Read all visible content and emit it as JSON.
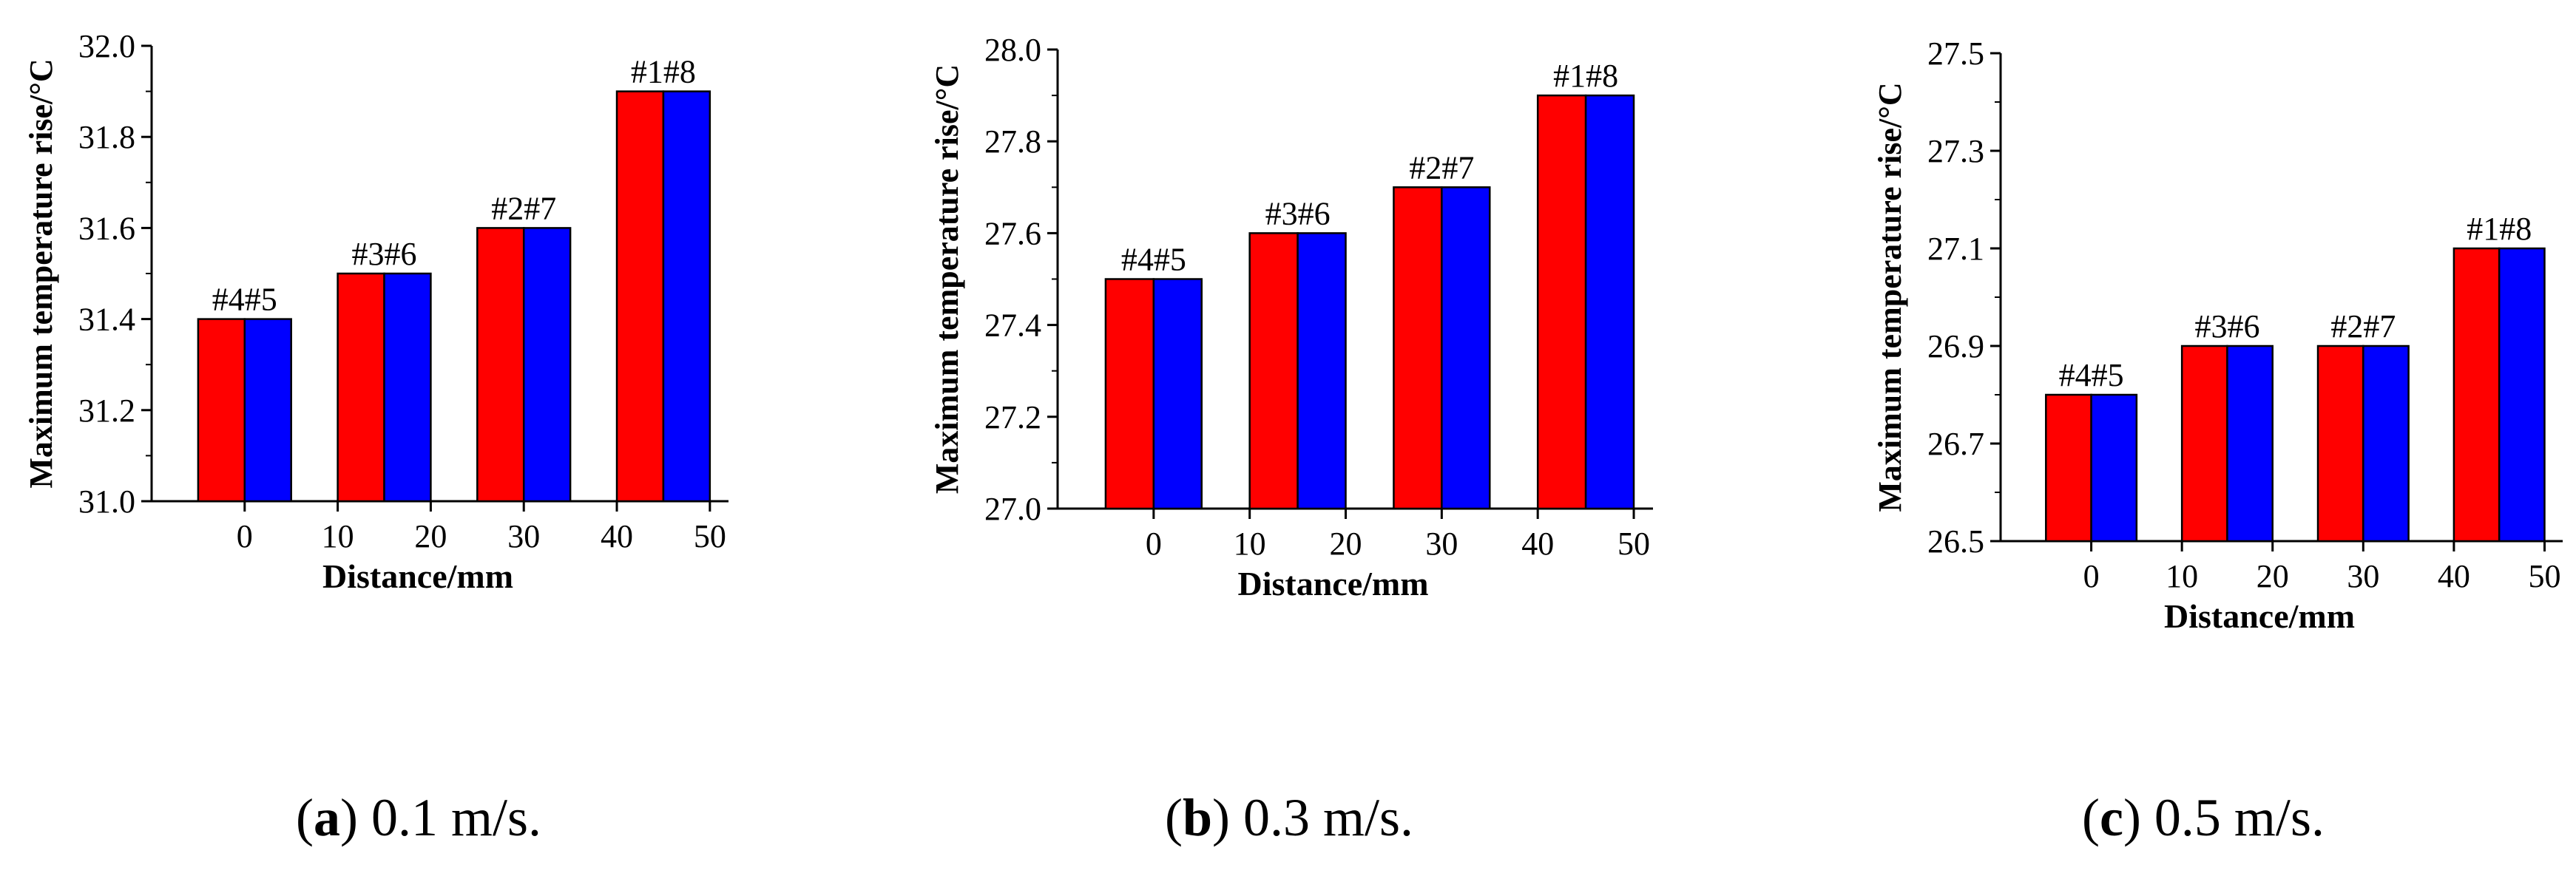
{
  "chart_data": [
    {
      "type": "bar",
      "categories": [
        "0",
        "15",
        "30",
        "45"
      ],
      "x_ticks": [
        "0",
        "10",
        "20",
        "30",
        "40",
        "50"
      ],
      "x_range": [
        -10,
        52
      ],
      "series": [
        {
          "name": "red",
          "color": "#ff0000",
          "values": [
            31.4,
            31.5,
            31.6,
            31.9
          ]
        },
        {
          "name": "blue",
          "color": "#0000ff",
          "values": [
            31.4,
            31.5,
            31.6,
            31.9
          ]
        }
      ],
      "bar_labels": [
        "#4#5",
        "#3#6",
        "#2#7",
        "#1#8"
      ],
      "xlabel": "Distance/mm",
      "ylabel": "Maximum temperature rise/°C",
      "ylim": [
        31.0,
        32.0
      ],
      "y_ticks": [
        "31.0",
        "31.2",
        "31.4",
        "31.6",
        "31.8",
        "32.0"
      ],
      "caption_letter": "a",
      "caption_open": "(",
      "caption_rest": ") 0.1 m/s."
    },
    {
      "type": "bar",
      "categories": [
        "0",
        "15",
        "30",
        "45"
      ],
      "x_ticks": [
        "0",
        "10",
        "20",
        "30",
        "40",
        "50"
      ],
      "x_range": [
        -10,
        52
      ],
      "series": [
        {
          "name": "red",
          "color": "#ff0000",
          "values": [
            27.5,
            27.6,
            27.7,
            27.9
          ]
        },
        {
          "name": "blue",
          "color": "#0000ff",
          "values": [
            27.5,
            27.6,
            27.7,
            27.9
          ]
        }
      ],
      "bar_labels": [
        "#4#5",
        "#3#6",
        "#2#7",
        "#1#8"
      ],
      "xlabel": "Distance/mm",
      "ylabel": "Maximum temperature rise/°C",
      "ylim": [
        27.0,
        28.0
      ],
      "y_ticks": [
        "27.0",
        "27.2",
        "27.4",
        "27.6",
        "27.8",
        "28.0"
      ],
      "caption_letter": "b",
      "caption_open": "(",
      "caption_rest": ") 0.3 m/s."
    },
    {
      "type": "bar",
      "categories": [
        "0",
        "15",
        "30",
        "45"
      ],
      "x_ticks": [
        "0",
        "10",
        "20",
        "30",
        "40",
        "50"
      ],
      "x_range": [
        -10,
        52
      ],
      "series": [
        {
          "name": "red",
          "color": "#ff0000",
          "values": [
            26.8,
            26.9,
            26.9,
            27.1
          ]
        },
        {
          "name": "blue",
          "color": "#0000ff",
          "values": [
            26.8,
            26.9,
            26.9,
            27.1
          ]
        }
      ],
      "bar_labels": [
        "#4#5",
        "#3#6",
        "#2#7",
        "#1#8"
      ],
      "xlabel": "Distance/mm",
      "ylabel": "Maximum temperature rise/°C",
      "ylim": [
        26.5,
        27.5
      ],
      "y_ticks": [
        "26.5",
        "26.7",
        "26.9",
        "27.1",
        "27.3",
        "27.5"
      ],
      "caption_letter": "c",
      "caption_open": "(",
      "caption_rest": ") 0.5 m/s."
    }
  ]
}
